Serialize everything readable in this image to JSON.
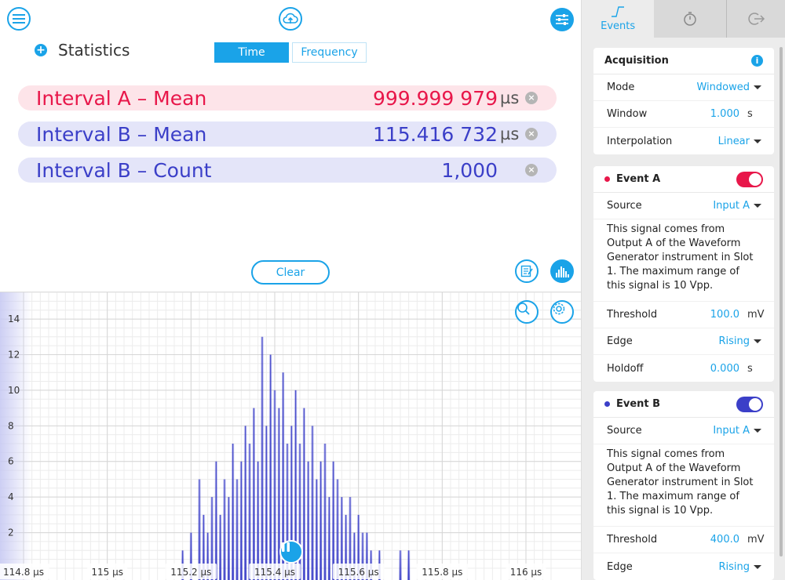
{
  "colors": {
    "accent": "#1aa3e8",
    "interval_a": "#e8174a",
    "interval_b": "#3b3fc8"
  },
  "header": {
    "menu_icon": "hamburger-icon",
    "cloud_icon": "cloud-upload-icon",
    "settings_icon": "sliders-icon"
  },
  "statistics": {
    "title": "Statistics",
    "tabs": [
      {
        "label": "Time",
        "active": true
      },
      {
        "label": "Frequency",
        "active": false
      }
    ],
    "rows": [
      {
        "label": "Interval A – Mean",
        "value": "999.999 979",
        "unit": "µs"
      },
      {
        "label": "Interval B – Mean",
        "value": "115.416 732",
        "unit": "µs"
      },
      {
        "label": "Interval B – Count",
        "value": "1,000",
        "unit": ""
      }
    ],
    "clear_label": "Clear"
  },
  "chart_data": {
    "type": "bar",
    "x_ticks": [
      "114.8 µs",
      "115 µs",
      "115.2 µs",
      "115.4 µs",
      "115.6 µs",
      "115.8 µs",
      "116 µs"
    ],
    "x_tick_values": [
      114.8,
      115.0,
      115.2,
      115.4,
      115.6,
      115.8,
      116.0
    ],
    "y_ticks": [
      "2",
      "4",
      "6",
      "8",
      "10",
      "12",
      "14"
    ],
    "y_tick_values": [
      2,
      4,
      6,
      8,
      10,
      12,
      14
    ],
    "xlim": [
      114.8,
      116.06
    ],
    "ylim": [
      0,
      15.5
    ],
    "grid": true,
    "series": [
      {
        "bins": [
          [
            115.18,
            1
          ],
          [
            115.2,
            2
          ],
          [
            115.22,
            5
          ],
          [
            115.23,
            3
          ],
          [
            115.24,
            2
          ],
          [
            115.25,
            4
          ],
          [
            115.26,
            6
          ],
          [
            115.27,
            3
          ],
          [
            115.28,
            5
          ],
          [
            115.29,
            4
          ],
          [
            115.3,
            7
          ],
          [
            115.31,
            5
          ],
          [
            115.32,
            6
          ],
          [
            115.33,
            8
          ],
          [
            115.34,
            7
          ],
          [
            115.35,
            9
          ],
          [
            115.36,
            6
          ],
          [
            115.37,
            13
          ],
          [
            115.38,
            8
          ],
          [
            115.39,
            12
          ],
          [
            115.4,
            10
          ],
          [
            115.41,
            9
          ],
          [
            115.42,
            11
          ],
          [
            115.43,
            7
          ],
          [
            115.44,
            8
          ],
          [
            115.45,
            10
          ],
          [
            115.46,
            7
          ],
          [
            115.47,
            9
          ],
          [
            115.48,
            6
          ],
          [
            115.49,
            8
          ],
          [
            115.5,
            5
          ],
          [
            115.51,
            6
          ],
          [
            115.52,
            7
          ],
          [
            115.53,
            4
          ],
          [
            115.54,
            6
          ],
          [
            115.55,
            5
          ],
          [
            115.56,
            4
          ],
          [
            115.57,
            3
          ],
          [
            115.58,
            4
          ],
          [
            115.59,
            2
          ],
          [
            115.6,
            3
          ],
          [
            115.61,
            2
          ],
          [
            115.62,
            2
          ],
          [
            115.63,
            1
          ],
          [
            115.65,
            1
          ],
          [
            115.7,
            1
          ],
          [
            115.72,
            1
          ]
        ]
      }
    ]
  },
  "panel": {
    "tabs": [
      {
        "label": "Events",
        "icon": "edge-icon",
        "active": true
      },
      {
        "label": "",
        "icon": "stopwatch-icon",
        "active": false
      },
      {
        "label": "",
        "icon": "export-icon",
        "active": false
      }
    ],
    "acquisition": {
      "title": "Acquisition",
      "props": [
        {
          "label": "Mode",
          "value": "Windowed",
          "dropdown": true
        },
        {
          "label": "Window",
          "value": "1.000",
          "unit": "s"
        },
        {
          "label": "Interpolation",
          "value": "Linear",
          "dropdown": true
        }
      ]
    },
    "event_a": {
      "title": "Event A",
      "enabled": true,
      "source": {
        "label": "Source",
        "value": "Input A"
      },
      "description": "This signal comes from Output A of the Waveform Generator instrument in Slot 1. The maximum range of this signal is 10 Vpp.",
      "threshold": {
        "label": "Threshold",
        "value": "100.0",
        "unit": "mV"
      },
      "edge": {
        "label": "Edge",
        "value": "Rising"
      },
      "holdoff": {
        "label": "Holdoff",
        "value": "0.000",
        "unit": "s"
      }
    },
    "event_b": {
      "title": "Event B",
      "enabled": true,
      "source": {
        "label": "Source",
        "value": "Input A"
      },
      "description": "This signal comes from Output A of the Waveform Generator instrument in Slot 1. The maximum range of this signal is 10 Vpp.",
      "threshold": {
        "label": "Threshold",
        "value": "400.0",
        "unit": "mV"
      },
      "edge": {
        "label": "Edge",
        "value": "Rising"
      }
    }
  }
}
